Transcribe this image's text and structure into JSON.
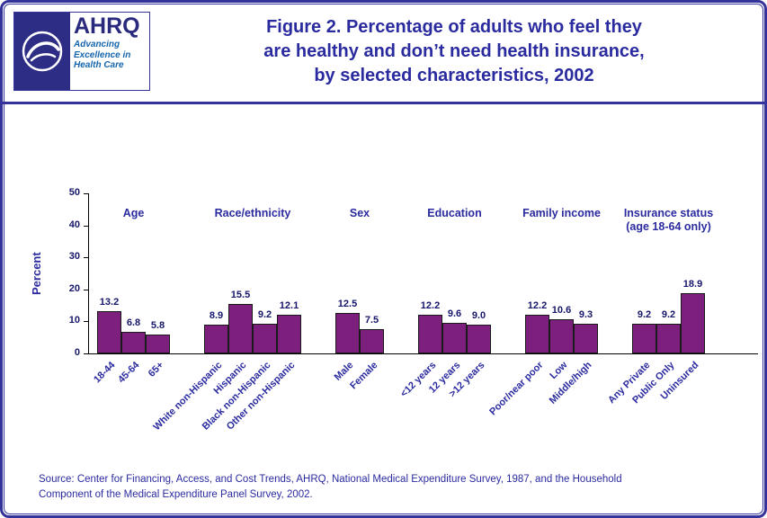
{
  "logo": {
    "acronym": "AHRQ",
    "tagline_lines": [
      "Advancing",
      "Excellence in",
      "Health Care"
    ]
  },
  "title_lines": [
    "Figure 2. Percentage of adults who feel they",
    "are healthy and don’t need health insurance,",
    "by selected characteristics, 2002"
  ],
  "source_lines": [
    "Source: Center for Financing, Access, and Cost Trends, AHRQ, National Medical Expenditure Survey, 1987, and the Household",
    "Component of the Medical Expenditure Panel Survey, 2002."
  ],
  "chart_data": {
    "type": "bar",
    "title": "Figure 2. Percentage of adults who feel they are healthy and don’t need health insurance, by selected characteristics, 2002",
    "xlabel": "",
    "ylabel": "Percent",
    "ylim": [
      0,
      50
    ],
    "yticks": [
      0,
      10,
      20,
      30,
      40,
      50
    ],
    "grid": false,
    "legend": "none",
    "bar_color": "#7d1f7d",
    "groups": [
      {
        "label": "Age",
        "sublabel": "",
        "categories": [
          "18-44",
          "45-64",
          "65+"
        ],
        "values": [
          13.2,
          6.8,
          5.8
        ]
      },
      {
        "label": "Race/ethnicity",
        "sublabel": "",
        "categories": [
          "White non-Hispanic",
          "Hispanic",
          "Black non-Hispanic",
          "Other non-Hispanic"
        ],
        "values": [
          8.9,
          15.5,
          9.2,
          12.1
        ]
      },
      {
        "label": "Sex",
        "sublabel": "",
        "categories": [
          "Male",
          "Female"
        ],
        "values": [
          12.5,
          7.5
        ]
      },
      {
        "label": "Education",
        "sublabel": "",
        "categories": [
          "<12 years",
          "12 years",
          ">12 years"
        ],
        "values": [
          12.2,
          9.6,
          9.0
        ]
      },
      {
        "label": "Family income",
        "sublabel": "",
        "categories": [
          "Poor/near poor",
          "Low",
          "Middle/high"
        ],
        "values": [
          12.2,
          10.6,
          9.3
        ]
      },
      {
        "label": "Insurance status",
        "sublabel": "(age 18-64 only)",
        "categories": [
          "Any Private",
          "Public Only",
          "Uninsured"
        ],
        "values": [
          9.2,
          9.2,
          18.9
        ]
      }
    ]
  }
}
